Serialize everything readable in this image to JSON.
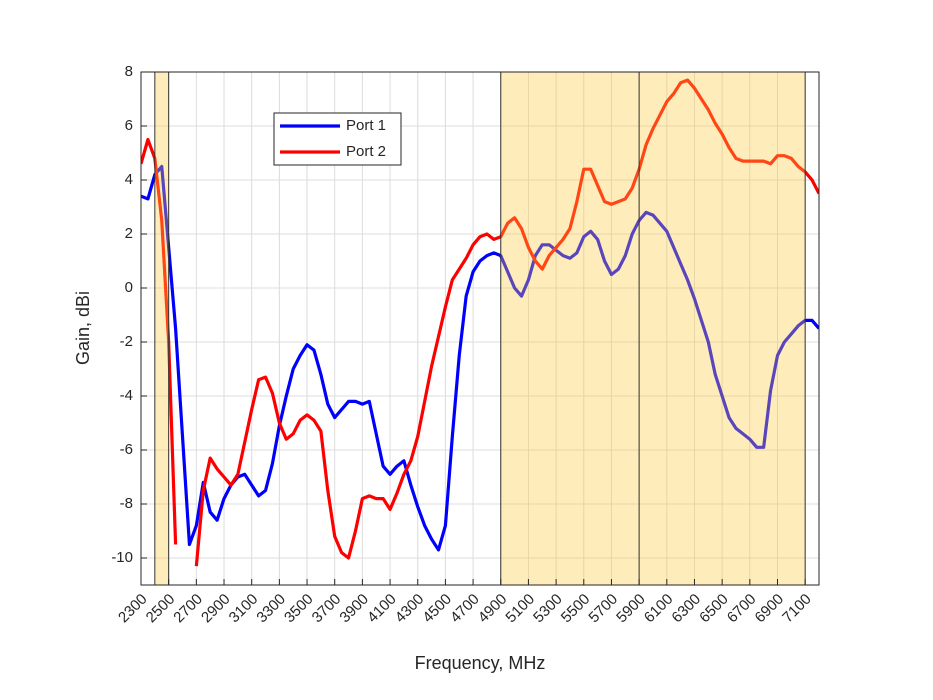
{
  "chart_data": {
    "type": "line",
    "xlabel": "Frequency, MHz",
    "ylabel": "Gain, dBi",
    "xlim": [
      2300,
      7200
    ],
    "ylim": [
      -11,
      8
    ],
    "xticks": [
      2300,
      2500,
      2700,
      2900,
      3100,
      3300,
      3500,
      3700,
      3900,
      4100,
      4300,
      4500,
      4700,
      4900,
      5100,
      5300,
      5500,
      5700,
      5900,
      6100,
      6300,
      6500,
      6700,
      6900,
      7100
    ],
    "yticks": [
      -10,
      -8,
      -6,
      -4,
      -2,
      0,
      2,
      4,
      6,
      8
    ],
    "grid": true,
    "legend": "northwest",
    "bands": [
      [
        2400,
        2500
      ],
      [
        4900,
        7100
      ]
    ],
    "band_color": "#ffc83c",
    "band_alpha": 0.35,
    "vlines": [
      2400,
      2500,
      4900,
      5900,
      7100
    ],
    "x": [
      2300,
      2350,
      2400,
      2450,
      2500,
      2550,
      2600,
      2650,
      2700,
      2750,
      2800,
      2850,
      2900,
      2950,
      3000,
      3050,
      3100,
      3150,
      3200,
      3250,
      3300,
      3350,
      3400,
      3450,
      3500,
      3550,
      3600,
      3650,
      3700,
      3750,
      3800,
      3850,
      3900,
      3950,
      4000,
      4050,
      4100,
      4150,
      4200,
      4250,
      4300,
      4350,
      4400,
      4450,
      4500,
      4550,
      4600,
      4650,
      4700,
      4750,
      4800,
      4850,
      4900,
      4950,
      5000,
      5050,
      5100,
      5150,
      5200,
      5250,
      5300,
      5350,
      5400,
      5450,
      5500,
      5550,
      5600,
      5650,
      5700,
      5750,
      5800,
      5850,
      5900,
      5950,
      6000,
      6050,
      6100,
      6150,
      6200,
      6250,
      6300,
      6350,
      6400,
      6450,
      6500,
      6550,
      6600,
      6650,
      6700,
      6750,
      6800,
      6850,
      6900,
      6950,
      7000,
      7050,
      7100,
      7150,
      7200
    ],
    "series": [
      {
        "name": "Port 1",
        "color": "#0000ff",
        "values": [
          3.4,
          3.3,
          4.2,
          4.5,
          1.5,
          -1.5,
          -5.5,
          -9.5,
          -8.8,
          -7.2,
          -8.3,
          -8.6,
          -7.8,
          -7.3,
          -7.0,
          -6.9,
          -7.3,
          -7.7,
          -7.5,
          -6.5,
          -5.1,
          -4.0,
          -3.0,
          -2.5,
          -2.1,
          -2.3,
          -3.2,
          -4.3,
          -4.8,
          -4.5,
          -4.2,
          -4.2,
          -4.3,
          -4.2,
          -5.4,
          -6.6,
          -6.9,
          -6.6,
          -6.4,
          -7.3,
          -8.1,
          -8.8,
          -9.3,
          -9.7,
          -8.8,
          -5.5,
          -2.5,
          -0.3,
          0.6,
          1.0,
          1.2,
          1.3,
          1.2,
          0.6,
          0.0,
          -0.3,
          0.3,
          1.2,
          1.6,
          1.6,
          1.4,
          1.2,
          1.1,
          1.3,
          1.9,
          2.1,
          1.8,
          1.0,
          0.5,
          0.7,
          1.2,
          2.0,
          2.5,
          2.8,
          2.7,
          2.4,
          2.1,
          1.5,
          0.9,
          0.3,
          -0.4,
          -1.2,
          -2.0,
          -3.2,
          -4.0,
          -4.8,
          -5.2,
          -5.4,
          -5.6,
          -5.9,
          -5.9,
          -3.8,
          -2.5,
          -2.0,
          -1.7,
          -1.4,
          -1.2,
          -1.2,
          -1.5
        ]
      },
      {
        "name": "Port 2",
        "color": "#ff0000",
        "values": [
          4.6,
          5.5,
          4.8,
          2.5,
          -2.0,
          -9.5,
          null,
          null,
          -10.3,
          -7.5,
          -6.3,
          -6.7,
          -7.0,
          -7.3,
          -6.9,
          -5.7,
          -4.5,
          -3.4,
          -3.3,
          -3.9,
          -5.0,
          -5.6,
          -5.4,
          -4.9,
          -4.7,
          -4.9,
          -5.3,
          -7.5,
          -9.2,
          -9.8,
          -10.0,
          -9.0,
          -7.8,
          -7.7,
          -7.8,
          -7.8,
          -8.2,
          -7.6,
          -6.9,
          -6.4,
          -5.5,
          -4.2,
          -2.9,
          -1.8,
          -0.7,
          0.3,
          0.7,
          1.1,
          1.6,
          1.9,
          2.0,
          1.8,
          1.9,
          2.4,
          2.6,
          2.2,
          1.5,
          1.0,
          0.7,
          1.2,
          1.5,
          1.8,
          2.2,
          3.2,
          4.4,
          4.4,
          3.8,
          3.2,
          3.1,
          3.2,
          3.3,
          3.7,
          4.4,
          5.3,
          5.9,
          6.4,
          6.9,
          7.2,
          7.6,
          7.7,
          7.4,
          7.0,
          6.6,
          6.1,
          5.7,
          5.2,
          4.8,
          4.7,
          4.7,
          4.7,
          4.7,
          4.6,
          4.9,
          4.9,
          4.8,
          4.5,
          4.3,
          4.0,
          3.5
        ]
      }
    ]
  }
}
